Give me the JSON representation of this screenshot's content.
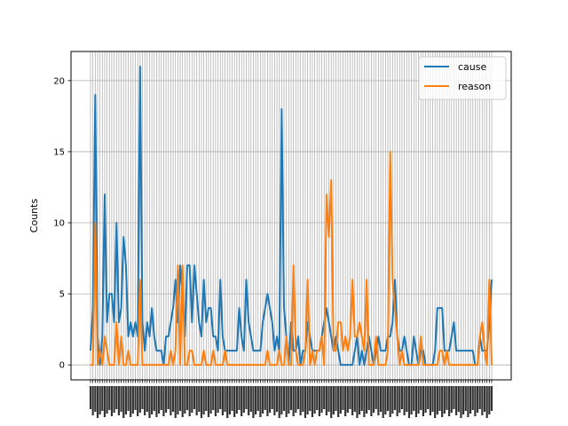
{
  "chart_data": {
    "type": "line",
    "title": "",
    "xlabel": "",
    "ylabel": "Counts",
    "ylim": [
      -1.05,
      22.05
    ],
    "yticks": [
      0,
      5,
      10,
      15,
      20
    ],
    "grid": true,
    "legend": "top-right",
    "x_tick_labels_legible": false,
    "series": [
      {
        "name": "cause",
        "color": "#1f77b4",
        "values": [
          1,
          4,
          19,
          2,
          0,
          2,
          12,
          3,
          5,
          5,
          3,
          10,
          3,
          4,
          9,
          7,
          2,
          3,
          2,
          3,
          2,
          21,
          3,
          1,
          3,
          2,
          4,
          2,
          1,
          1,
          1,
          0,
          2,
          2,
          3,
          4,
          6,
          3,
          7,
          5,
          2,
          7,
          7,
          3,
          7,
          5,
          3,
          2,
          6,
          3,
          4,
          4,
          2,
          2,
          1,
          6,
          2,
          1,
          1,
          1,
          1,
          1,
          1,
          4,
          2,
          1,
          6,
          3,
          2,
          1,
          1,
          1,
          1,
          3,
          4,
          5,
          4,
          3,
          1,
          2,
          1,
          18,
          4,
          2,
          0,
          3,
          1,
          1,
          2,
          0,
          1,
          1,
          3,
          2,
          1,
          1,
          1,
          1,
          2,
          3,
          4,
          3,
          2,
          1,
          2,
          1,
          0,
          0,
          0,
          0,
          0,
          0,
          1,
          2,
          0,
          1,
          0,
          1,
          2,
          1,
          0,
          1,
          2,
          1,
          1,
          1,
          2,
          2,
          3,
          6,
          2,
          1,
          1,
          2,
          1,
          0,
          0,
          2,
          1,
          0,
          1,
          1,
          0,
          0,
          0,
          0,
          1,
          4,
          4,
          4,
          1,
          1,
          1,
          2,
          3,
          1,
          1,
          1,
          1,
          1,
          1,
          1,
          1,
          0,
          0,
          2,
          1,
          1,
          1,
          3,
          6
        ]
      },
      {
        "name": "reason",
        "color": "#ff7f0e",
        "values": [
          0,
          0,
          10,
          0,
          1,
          0,
          2,
          1,
          0,
          0,
          0,
          3,
          0,
          2,
          0,
          0,
          1,
          0,
          0,
          0,
          0,
          6,
          0,
          0,
          0,
          0,
          0,
          0,
          0,
          0,
          0,
          0,
          0,
          0,
          1,
          0,
          1,
          7,
          0,
          7,
          0,
          0,
          1,
          1,
          0,
          0,
          0,
          0,
          1,
          0,
          0,
          0,
          1,
          0,
          0,
          0,
          0,
          1,
          0,
          0,
          0,
          0,
          0,
          0,
          0,
          0,
          0,
          0,
          0,
          0,
          0,
          0,
          0,
          0,
          0,
          1,
          0,
          0,
          0,
          0,
          1,
          0,
          0,
          2,
          0,
          0,
          7,
          1,
          0,
          0,
          0,
          1,
          6,
          0,
          1,
          0,
          1,
          1,
          2,
          0,
          12,
          9,
          13,
          1,
          1,
          3,
          3,
          1,
          2,
          1,
          2,
          6,
          2,
          2,
          3,
          2,
          1,
          6,
          0,
          0,
          0,
          2,
          0,
          0,
          0,
          0,
          1,
          15,
          6,
          4,
          2,
          0,
          1,
          0,
          0,
          0,
          0,
          0,
          0,
          0,
          2,
          0,
          0,
          0,
          0,
          0,
          0,
          0,
          1,
          1,
          0,
          1,
          0,
          0,
          0,
          0,
          0,
          0,
          0,
          0,
          0,
          0,
          0,
          0,
          0,
          2,
          3,
          1,
          0,
          6,
          0
        ]
      }
    ]
  }
}
